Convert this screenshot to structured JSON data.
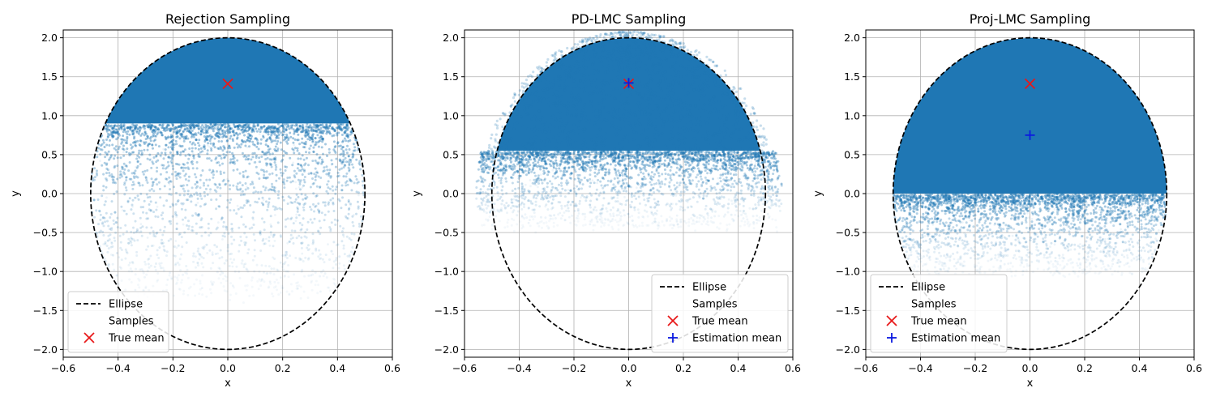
{
  "chart_data": [
    {
      "type": "scatter",
      "title": "Rejection Sampling",
      "xlabel": "x",
      "ylabel": "y",
      "xlim": [
        -0.6,
        0.6
      ],
      "ylim": [
        -2.1,
        2.1
      ],
      "xticks": [
        -0.6,
        -0.4,
        -0.2,
        0.0,
        0.2,
        0.4,
        0.6
      ],
      "xtick_labels": [
        "−0.6",
        "−0.4",
        "−0.2",
        "0.0",
        "0.2",
        "0.4",
        "0.6"
      ],
      "yticks": [
        -2.0,
        -1.5,
        -1.0,
        -0.5,
        0.0,
        0.5,
        1.0,
        1.5,
        2.0
      ],
      "ytick_labels": [
        "−2.0",
        "−1.5",
        "−1.0",
        "−0.5",
        "0.0",
        "0.5",
        "1.0",
        "1.5",
        "2.0"
      ],
      "grid": true,
      "legend_position": "lower-left",
      "ellipse": {
        "label": "Ellipse",
        "a": 0.5,
        "b": 2.0,
        "style": "dashed",
        "color": "#000000"
      },
      "samples": {
        "label": "Samples",
        "color": "#1f77b4",
        "dense_region": {
          "y_min": 0.9,
          "y_max": 2.0
        },
        "fade_lower_y": -1.3
      },
      "true_mean": {
        "label": "True mean",
        "x": 0.0,
        "y": 1.41,
        "marker": "x",
        "color": "#e8191a"
      }
    },
    {
      "type": "scatter",
      "title": "PD-LMC Sampling",
      "xlabel": "x",
      "ylabel": "y",
      "xlim": [
        -0.6,
        0.6
      ],
      "ylim": [
        -2.1,
        2.1
      ],
      "xticks": [
        -0.6,
        -0.4,
        -0.2,
        0.0,
        0.2,
        0.4,
        0.6
      ],
      "xtick_labels": [
        "−0.6",
        "−0.4",
        "−0.2",
        "0.0",
        "0.2",
        "0.4",
        "0.6"
      ],
      "yticks": [
        -2.0,
        -1.5,
        -1.0,
        -0.5,
        0.0,
        0.5,
        1.0,
        1.5,
        2.0
      ],
      "ytick_labels": [
        "−2.0",
        "−1.5",
        "−1.0",
        "−0.5",
        "0.0",
        "0.5",
        "1.0",
        "1.5",
        "2.0"
      ],
      "grid": true,
      "legend_position": "lower-right",
      "ellipse": {
        "label": "Ellipse",
        "a": 0.5,
        "b": 2.0,
        "style": "dashed",
        "color": "#000000"
      },
      "samples": {
        "label": "Samples",
        "color": "#1f77b4",
        "dense_region": {
          "y_min": 0.55,
          "y_max": 2.05
        },
        "fade_lower_y": -0.4
      },
      "true_mean": {
        "label": "True mean",
        "x": 0.0,
        "y": 1.41,
        "marker": "x",
        "color": "#e8191a"
      },
      "estimation_mean": {
        "label": "Estimation mean",
        "x": 0.0,
        "y": 1.42,
        "marker": "+",
        "color": "#0b1ae0"
      }
    },
    {
      "type": "scatter",
      "title": "Proj-LMC Sampling",
      "xlabel": "x",
      "ylabel": "y",
      "xlim": [
        -0.6,
        0.6
      ],
      "ylim": [
        -2.1,
        2.1
      ],
      "xticks": [
        -0.6,
        -0.4,
        -0.2,
        0.0,
        0.2,
        0.4,
        0.6
      ],
      "xtick_labels": [
        "−0.6",
        "−0.4",
        "−0.2",
        "0.0",
        "0.2",
        "0.4",
        "0.6"
      ],
      "yticks": [
        -2.0,
        -1.5,
        -1.0,
        -0.5,
        0.0,
        0.5,
        1.0,
        1.5,
        2.0
      ],
      "ytick_labels": [
        "−2.0",
        "−1.5",
        "−1.0",
        "−0.5",
        "0.0",
        "0.5",
        "1.0",
        "1.5",
        "2.0"
      ],
      "grid": true,
      "legend_position": "lower-left",
      "ellipse": {
        "label": "Ellipse",
        "a": 0.5,
        "b": 2.0,
        "style": "dashed",
        "color": "#000000"
      },
      "samples": {
        "label": "Samples",
        "color": "#1f77b4",
        "dense_region": {
          "y_min": 0.0,
          "y_max": 2.0
        },
        "fade_lower_y": -1.0
      },
      "true_mean": {
        "label": "True mean",
        "x": 0.0,
        "y": 1.41,
        "marker": "x",
        "color": "#e8191a"
      },
      "estimation_mean": {
        "label": "Estimation mean",
        "x": 0.0,
        "y": 0.75,
        "marker": "+",
        "color": "#0b1ae0"
      }
    }
  ]
}
